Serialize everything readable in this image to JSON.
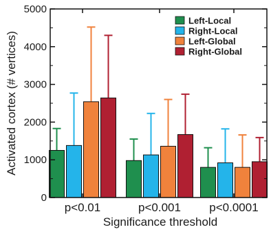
{
  "chart_data": {
    "type": "bar",
    "title": "",
    "xlabel": "Significance threshold",
    "ylabel": "Activated cortex (# vertices)",
    "ylim": [
      0,
      5000
    ],
    "yticks": [
      "0",
      "1000",
      "2000",
      "3000",
      "4000",
      "5000"
    ],
    "categories": [
      "p<0.01",
      "p<0.001",
      "p<0.0001"
    ],
    "series": [
      {
        "name": "Left-Local",
        "color": "#1f8f4e",
        "values": [
          1250,
          980,
          800
        ],
        "error_upper": [
          1830,
          1550,
          1320
        ]
      },
      {
        "name": "Right-Local",
        "color": "#24b4ea",
        "values": [
          1380,
          1130,
          920
        ],
        "error_upper": [
          2770,
          2230,
          1820
        ]
      },
      {
        "name": "Left-Global",
        "color": "#f0823c",
        "values": [
          2540,
          1360,
          800
        ],
        "error_upper": [
          4520,
          2600,
          1660
        ]
      },
      {
        "name": "Right-Global",
        "color": "#b02032",
        "values": [
          2640,
          1670,
          950
        ],
        "error_upper": [
          4300,
          2740,
          1590
        ]
      }
    ],
    "legend_position": "top-right",
    "grid": false
  }
}
